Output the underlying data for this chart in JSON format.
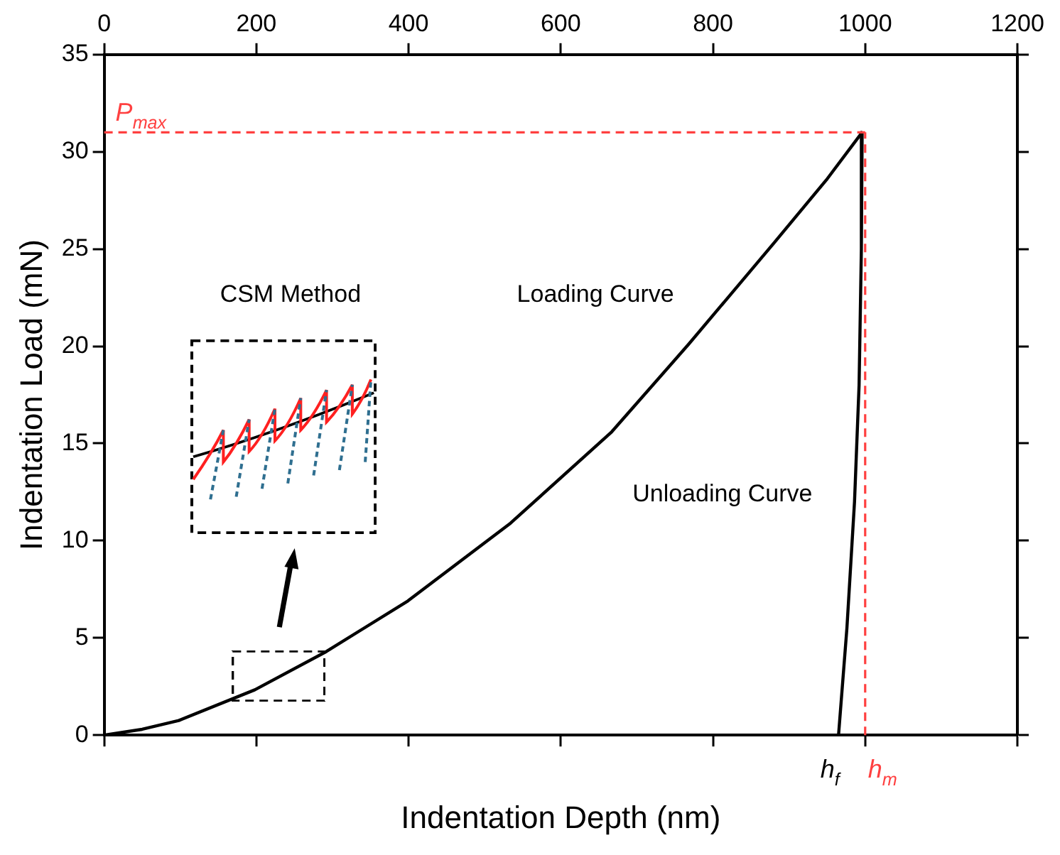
{
  "chart_data": {
    "type": "line",
    "xlabel": "Indentation Depth (nm)",
    "ylabel": "Indentation Load (mN)",
    "xlim": [
      0,
      1200
    ],
    "xticks": [
      0,
      200,
      400,
      600,
      800,
      1000,
      1200
    ],
    "ylim": [
      0,
      35
    ],
    "yticks": [
      0,
      5,
      10,
      15,
      20,
      25,
      30,
      35
    ],
    "grid": false,
    "legend": false,
    "marker": "none",
    "line_style": "solid",
    "series": [
      {
        "color": "#000000",
        "x": [
          0,
          50,
          98,
          198,
          292,
          399,
          534,
          667,
          768,
          880,
          950,
          996
        ],
        "values": [
          0,
          0.3,
          0.75,
          2.33,
          4.3,
          6.9,
          10.9,
          15.6,
          20.1,
          25.3,
          28.6,
          31
        ]
      },
      {
        "color": "#000000",
        "x": [
          996,
          995,
          992,
          986,
          976,
          965
        ],
        "values": [
          31,
          25,
          18,
          12,
          5.5,
          0
        ]
      }
    ],
    "ref_lines": [
      {
        "axis": "y",
        "value": 31,
        "label": "P$_{max}$",
        "color": "#ff4040",
        "line_style": "dashed"
      },
      {
        "axis": "x",
        "value": 1000,
        "label": "h$_{m}$",
        "color": "#ff4040",
        "line_style": "dashed"
      }
    ],
    "annotations": [
      "CSM Method",
      "Loading Curve",
      "Unloading Curve",
      {
        "text": "h$_{f}$",
        "x": 965,
        "y": 0
      }
    ]
  }
}
